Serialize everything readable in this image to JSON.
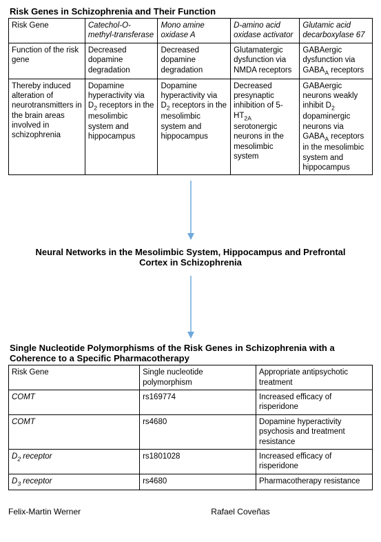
{
  "arrow": {
    "color": "#6fa8dc",
    "head_color": "#6fa8dc"
  },
  "table1": {
    "title": "Risk Genes in Schizophrenia and Their Function",
    "col_widths": [
      "21%",
      "20%",
      "20%",
      "19%",
      "20%"
    ],
    "rows": [
      [
        {
          "text": "Risk Gene"
        },
        {
          "text": "Catechol-O-methyl-transferase",
          "italic": true
        },
        {
          "text": "Mono amine oxidase A",
          "italic": true
        },
        {
          "text": "D-amino acid oxidase activator",
          "italic": true
        },
        {
          "text": "Glutamic acid decarboxylase 67",
          "italic": true
        }
      ],
      [
        {
          "text": "Function of the risk gene"
        },
        {
          "text": "Decreased dopamine degradation"
        },
        {
          "text": "Decreased dopamine degradation"
        },
        {
          "text": "Glutamatergic dysfunction via NMDA receptors"
        },
        {
          "html": "GABAergic dysfunction via GABA<sub>A</sub> receptors"
        }
      ],
      [
        {
          "text": "Thereby induced alteration of neurotransmitters in the brain areas involved in schizophrenia"
        },
        {
          "html": "Dopamine hyperactivity via D<sub>2</sub> receptors in the mesolimbic system and hippocampus"
        },
        {
          "html": "Dopamine hyperactivity via D<sub>2</sub> receptors in the mesolimbic system and hippocampus"
        },
        {
          "html": "Decreased presynaptic inhibition of 5-HT<sub>2A</sub> serotonergic neurons in the mesolimbic system"
        },
        {
          "html": "GABAergic neurons weakly inhibit D<sub>2</sub> dopaminergic neurons via GABA<sub>A</sub> receptors in the mesolimbic system and hippocampus"
        }
      ]
    ]
  },
  "mid_title": "Neural Networks in the Mesolimbic System, Hippocampus and Prefrontal Cortex in Schizophrenia",
  "table2": {
    "title": "Single Nucleotide Polymorphisms of the Risk Genes in Schizophrenia with a Coherence to a Specific Pharmacotherapy",
    "col_widths": [
      "36%",
      "32%",
      "32%"
    ],
    "rows": [
      [
        {
          "text": "Risk Gene"
        },
        {
          "text": "Single nucleotide polymorphism"
        },
        {
          "text": "Appropriate antipsychotic treatment"
        }
      ],
      [
        {
          "text": "COMT",
          "italic": true
        },
        {
          "text": "rs169774"
        },
        {
          "text": "Increased efficacy of risperidone"
        }
      ],
      [
        {
          "text": "COMT",
          "italic": true
        },
        {
          "text": "rs4680"
        },
        {
          "text": "Dopamine hyperactivity psychosis and treatment resistance"
        }
      ],
      [
        {
          "html": "<span class='italic'>D<sub>2</sub> receptor</span>"
        },
        {
          "text": "rs1801028"
        },
        {
          "text": "Increased efficacy of risperidone"
        }
      ],
      [
        {
          "html": "<span class='italic'>D<sub>3</sub> receptor</span>"
        },
        {
          "text": "rs4680"
        },
        {
          "text": "Pharmacotherapy resistance"
        }
      ]
    ]
  },
  "authors": {
    "left": "Felix-Martin Werner",
    "right": "Rafael Coveñas"
  },
  "arrow1_height": 90,
  "arrow2_height": 95
}
